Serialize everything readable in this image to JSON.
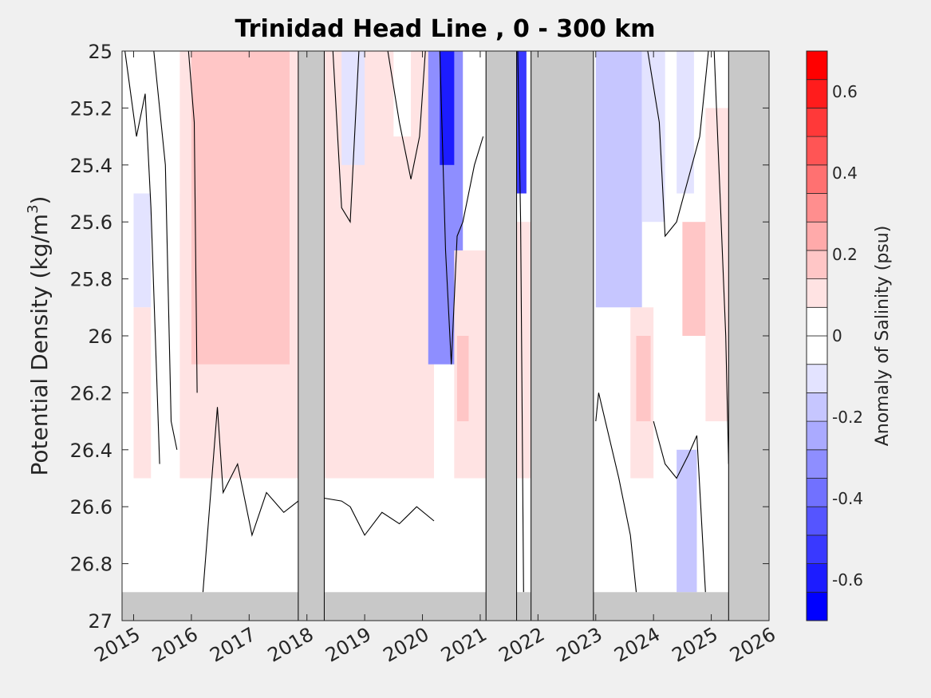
{
  "chart_data": {
    "type": "heatmap",
    "title": "Trinidad Head Line , 0 - 300 km",
    "ylabel": "Potential Density (kg/m",
    "ylabel_superscript": "3",
    "ylabel_close": ")",
    "colorbar_label": "Anomaly of Salinity (psu)",
    "x": {
      "min": 2014.8,
      "max": 2026.0,
      "ticks": [
        2015,
        2016,
        2017,
        2018,
        2019,
        2020,
        2021,
        2022,
        2023,
        2024,
        2025,
        2026
      ]
    },
    "x_tick_labels": [
      "2015",
      "2016",
      "2017",
      "2018",
      "2019",
      "2020",
      "2021",
      "2022",
      "2023",
      "2024",
      "2025",
      "2026"
    ],
    "y": {
      "min": 25,
      "max": 27,
      "reversed": true,
      "ticks": [
        25,
        25.2,
        25.4,
        25.6,
        25.8,
        26,
        26.2,
        26.4,
        26.6,
        26.8,
        27
      ]
    },
    "y_tick_labels": [
      "25",
      "25.2",
      "25.4",
      "25.6",
      "25.8",
      "26",
      "26.2",
      "26.4",
      "26.6",
      "26.8",
      "27"
    ],
    "colorbar": {
      "min": -0.7,
      "max": 0.7,
      "step": 0.07,
      "ticks": [
        -0.6,
        -0.4,
        -0.2,
        0,
        0.2,
        0.4,
        0.6
      ],
      "tick_labels": [
        "-0.6",
        "-0.4",
        "-0.2",
        "0",
        "0.2",
        "0.4",
        "0.6"
      ]
    },
    "no_data_bottom_density": 26.9,
    "no_data_periods": [
      [
        2017.85,
        2018.3
      ],
      [
        2021.1,
        2021.63
      ],
      [
        2021.88,
        2022.96
      ],
      [
        2025.3,
        2026.0
      ]
    ],
    "field_cells": [
      {
        "x": [
          2014.8,
          2015.3
        ],
        "y": [
          25.0,
          26.5
        ],
        "value": -0.05
      },
      {
        "x": [
          2015.0,
          2015.8
        ],
        "y": [
          25.5,
          25.9
        ],
        "value": -0.09
      },
      {
        "x": [
          2015.3,
          2015.8
        ],
        "y": [
          25.0,
          26.4
        ],
        "value": 0.02
      },
      {
        "x": [
          2015.0,
          2015.3
        ],
        "y": [
          25.9,
          26.5
        ],
        "value": 0.09
      },
      {
        "x": [
          2015.8,
          2017.85
        ],
        "y": [
          25.0,
          26.5
        ],
        "value": 0.1
      },
      {
        "x": [
          2016.0,
          2017.7
        ],
        "y": [
          25.0,
          26.1
        ],
        "value": 0.14
      },
      {
        "x": [
          2016.2,
          2016.6
        ],
        "y": [
          25.2,
          25.8
        ],
        "value": 0.2
      },
      {
        "x": [
          2016.9,
          2017.5
        ],
        "y": [
          25.0,
          25.8
        ],
        "value": 0.17
      },
      {
        "x": [
          2018.3,
          2020.2
        ],
        "y": [
          25.0,
          26.5
        ],
        "value": 0.09
      },
      {
        "x": [
          2018.3,
          2019.9
        ],
        "y": [
          25.0,
          26.3
        ],
        "value": 0.13
      },
      {
        "x": [
          2018.6,
          2019.0
        ],
        "y": [
          25.0,
          25.4
        ],
        "value": -0.12
      },
      {
        "x": [
          2019.5,
          2019.8
        ],
        "y": [
          25.0,
          25.3
        ],
        "value": -0.06
      },
      {
        "x": [
          2020.1,
          2020.7
        ],
        "y": [
          25.0,
          26.1
        ],
        "value": -0.3
      },
      {
        "x": [
          2020.3,
          2020.55
        ],
        "y": [
          25.0,
          25.4
        ],
        "value": -0.58
      },
      {
        "x": [
          2020.55,
          2021.1
        ],
        "y": [
          25.7,
          26.5
        ],
        "value": 0.1
      },
      {
        "x": [
          2020.6,
          2020.8
        ],
        "y": [
          26.0,
          26.3
        ],
        "value": 0.2
      },
      {
        "x": [
          2021.63,
          2021.8
        ],
        "y": [
          25.0,
          25.5
        ],
        "value": -0.5
      },
      {
        "x": [
          2021.63,
          2021.88
        ],
        "y": [
          25.6,
          26.5
        ],
        "value": 0.08
      },
      {
        "x": [
          2023.0,
          2023.8
        ],
        "y": [
          25.0,
          25.9
        ],
        "value": -0.16
      },
      {
        "x": [
          2023.8,
          2024.2
        ],
        "y": [
          25.0,
          25.6
        ],
        "value": -0.11
      },
      {
        "x": [
          2023.6,
          2024.0
        ],
        "y": [
          25.9,
          26.5
        ],
        "value": 0.1
      },
      {
        "x": [
          2023.7,
          2023.95
        ],
        "y": [
          26.0,
          26.3
        ],
        "value": 0.2
      },
      {
        "x": [
          2024.4,
          2024.7
        ],
        "y": [
          25.0,
          25.5
        ],
        "value": -0.09
      },
      {
        "x": [
          2024.5,
          2024.9
        ],
        "y": [
          25.6,
          26.0
        ],
        "value": 0.14
      },
      {
        "x": [
          2024.4,
          2024.75
        ],
        "y": [
          26.4,
          26.9
        ],
        "value": -0.18
      },
      {
        "x": [
          2024.9,
          2025.3
        ],
        "y": [
          25.2,
          26.3
        ],
        "value": 0.12
      }
    ],
    "contours_zero": [
      {
        "x": [
          2014.85,
          2015.05,
          2015.2,
          2015.3,
          2015.45
        ],
        "y": [
          25.0,
          25.3,
          25.15,
          25.55,
          26.45
        ]
      },
      {
        "x": [
          2015.35,
          2015.55,
          2015.65,
          2015.75
        ],
        "y": [
          25.0,
          25.4,
          26.3,
          26.4
        ]
      },
      {
        "x": [
          2015.95,
          2016.05,
          2016.1
        ],
        "y": [
          25.0,
          25.25,
          26.2
        ]
      },
      {
        "x": [
          2016.2,
          2016.45,
          2016.55,
          2016.8,
          2017.05,
          2017.3,
          2017.6,
          2017.85
        ],
        "y": [
          26.9,
          26.25,
          26.55,
          26.45,
          26.7,
          26.55,
          26.62,
          26.58
        ]
      },
      {
        "x": [
          2018.3,
          2018.6,
          2018.75,
          2019.0,
          2019.3,
          2019.6,
          2019.9,
          2020.2
        ],
        "y": [
          26.57,
          26.58,
          26.6,
          26.7,
          26.62,
          26.66,
          26.6,
          26.65
        ]
      },
      {
        "x": [
          2018.45,
          2018.6,
          2018.75,
          2018.9
        ],
        "y": [
          25.0,
          25.55,
          25.6,
          25.0
        ]
      },
      {
        "x": [
          2019.4,
          2019.6,
          2019.8,
          2019.95,
          2020.05
        ],
        "y": [
          25.0,
          25.25,
          25.45,
          25.3,
          25.0
        ]
      },
      {
        "x": [
          2020.3,
          2020.4,
          2020.5,
          2020.6,
          2020.7,
          2020.9,
          2021.05
        ],
        "y": [
          25.0,
          25.7,
          26.1,
          25.65,
          25.6,
          25.4,
          25.3
        ]
      },
      {
        "x": [
          2021.65,
          2021.7,
          2021.75
        ],
        "y": [
          25.0,
          25.6,
          26.9
        ]
      },
      {
        "x": [
          2023.0,
          2023.05,
          2023.4,
          2023.6,
          2023.7
        ],
        "y": [
          26.3,
          26.2,
          26.5,
          26.7,
          26.9
        ]
      },
      {
        "x": [
          2023.9,
          2024.1,
          2024.2,
          2024.4,
          2024.6,
          2024.8,
          2024.95
        ],
        "y": [
          25.0,
          25.25,
          25.65,
          25.6,
          25.45,
          25.3,
          25.0
        ]
      },
      {
        "x": [
          2024.0,
          2024.2,
          2024.4,
          2024.6,
          2024.75,
          2024.9
        ],
        "y": [
          26.3,
          26.45,
          26.5,
          26.42,
          26.35,
          26.9
        ]
      },
      {
        "x": [
          2025.05,
          2025.15,
          2025.25,
          2025.3
        ],
        "y": [
          25.0,
          25.5,
          26.0,
          26.45
        ]
      }
    ]
  }
}
